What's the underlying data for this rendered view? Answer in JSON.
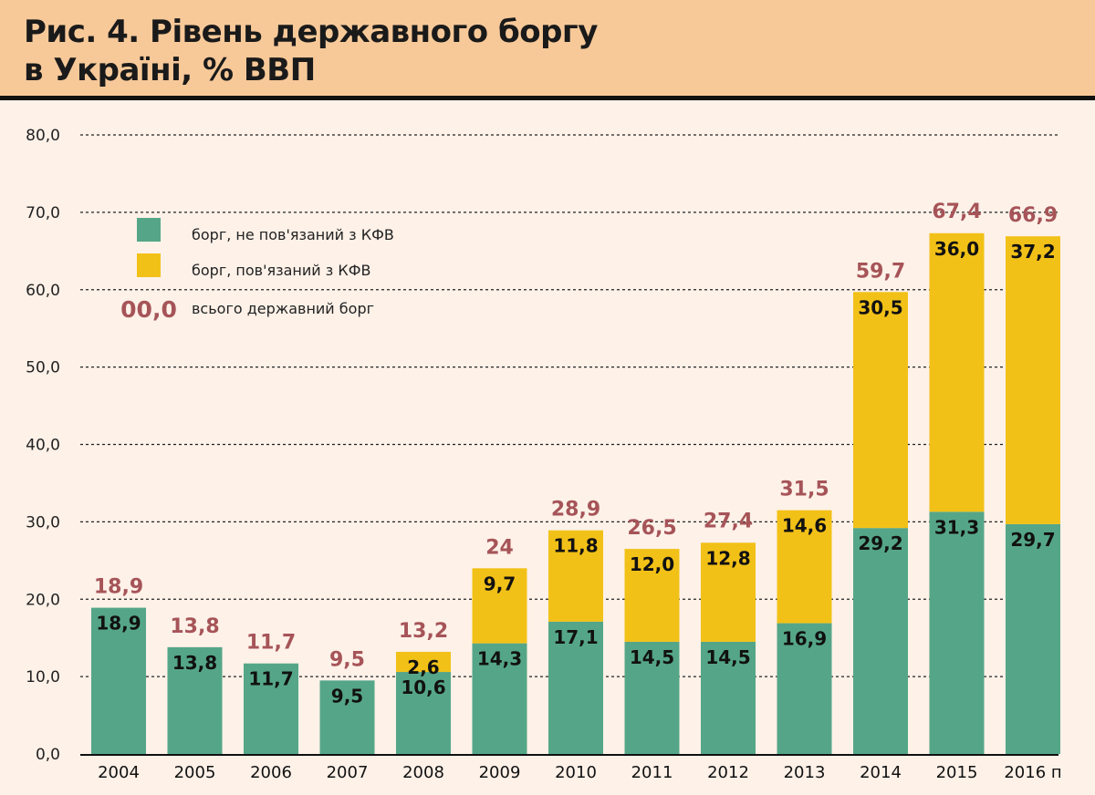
{
  "header": {
    "title": "Рис. 4. Рівень державного боргу\nв Україні, % ВВП"
  },
  "colors": {
    "header_bg": "#F7C999",
    "background": "#FDF1E8",
    "non_kfv": "#55A688",
    "kfv": "#F2C118",
    "total": "#A65458"
  },
  "chart_data": {
    "type": "bar",
    "stacked": true,
    "title": "Рис. 4. Рівень державного боргу в Україні, % ВВП",
    "xlabel": "",
    "ylabel": "",
    "ylim": [
      0,
      80
    ],
    "yticks": [
      0,
      10,
      20,
      30,
      40,
      50,
      60,
      70,
      80
    ],
    "ytick_labels": [
      "0,0",
      "10,0",
      "20,0",
      "30,0",
      "40,0",
      "50,0",
      "60,0",
      "70,0",
      "80,0"
    ],
    "grid": true,
    "legend_position": "top-left",
    "categories": [
      "2004",
      "2005",
      "2006",
      "2007",
      "2008",
      "2009",
      "2010",
      "2011",
      "2012",
      "2013",
      "2014",
      "2015",
      "2016 п"
    ],
    "series": [
      {
        "name": "борг, не пов'язаний з КФВ",
        "color": "#55A688",
        "values": [
          18.9,
          13.8,
          11.7,
          9.5,
          10.6,
          14.3,
          17.1,
          14.5,
          14.5,
          16.9,
          29.2,
          31.3,
          29.7
        ],
        "labels": [
          "18,9",
          "13,8",
          "11,7",
          "9,5",
          "10,6",
          "14,3",
          "17,1",
          "14,5",
          "14,5",
          "16,9",
          "29,2",
          "31,3",
          "29,7"
        ]
      },
      {
        "name": "борг, пов'язаний з КФВ",
        "color": "#F2C118",
        "values": [
          null,
          null,
          null,
          null,
          2.6,
          9.7,
          11.8,
          12.0,
          12.8,
          14.6,
          30.5,
          36.0,
          37.2
        ],
        "labels": [
          null,
          null,
          null,
          null,
          "2,6",
          "9,7",
          "11,8",
          "12,0",
          "12,8",
          "14,6",
          "30,5",
          "36,0",
          "37,2"
        ]
      }
    ],
    "totals": {
      "name": "всього державний борг",
      "color": "#A65458",
      "values": [
        18.9,
        13.8,
        11.7,
        9.5,
        13.2,
        24,
        28.9,
        26.5,
        27.4,
        31.5,
        59.7,
        67.4,
        66.9
      ],
      "labels": [
        "18,9",
        "13,8",
        "11,7",
        "9,5",
        "13,2",
        "24",
        "28,9",
        "26,5",
        "27,4",
        "31,5",
        "59,7",
        "67,4",
        "66,9"
      ]
    },
    "legend": {
      "items": [
        {
          "label": "борг, не пов'язаний з КФВ",
          "swatch": "square",
          "color": "#55A688"
        },
        {
          "label": "борг, пов'язаний з КФВ",
          "swatch": "square",
          "color": "#F2C118"
        },
        {
          "label": "всього державний борг",
          "swatch": "text",
          "sample": "00,0",
          "color": "#A65458"
        }
      ]
    }
  }
}
